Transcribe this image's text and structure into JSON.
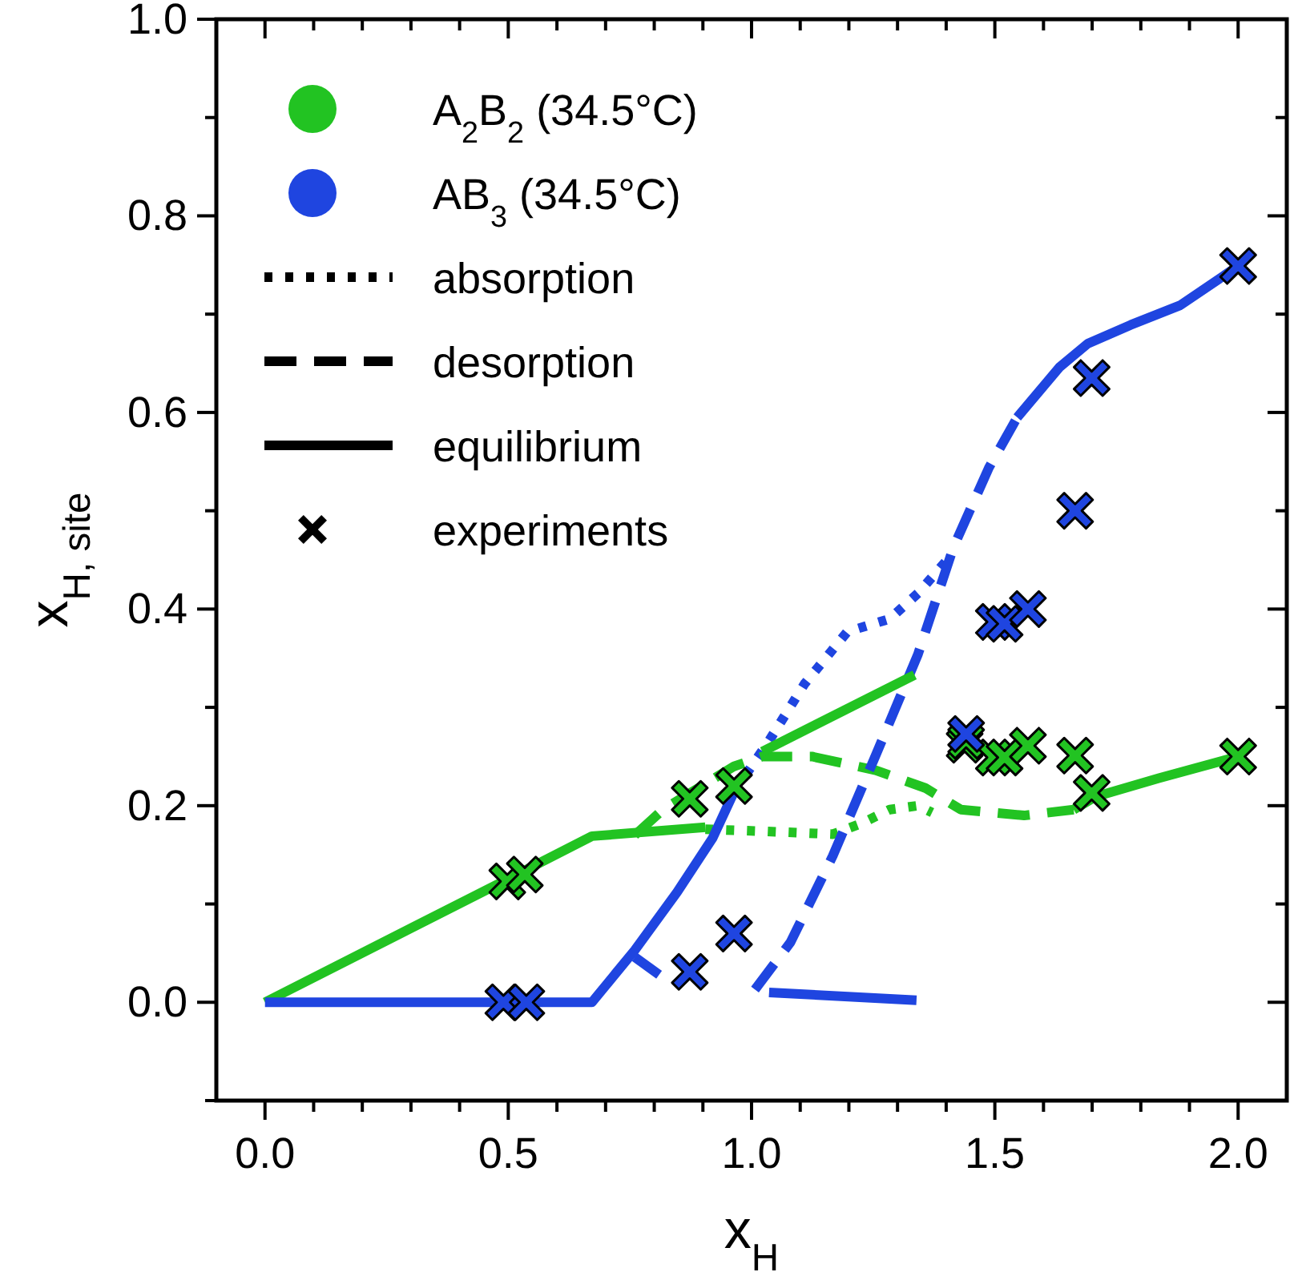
{
  "chart_data": {
    "type": "line",
    "xlabel": "x$_{H}$",
    "ylabel": "x$_{H, site}$",
    "xlim": [
      -0.1,
      2.1
    ],
    "ylim": [
      -0.1,
      1.0
    ],
    "xticks": [
      {
        "value": 0,
        "label": "0.0"
      },
      {
        "value": 0.1,
        "label": null
      },
      {
        "value": 0.2,
        "label": null
      },
      {
        "value": 0.3,
        "label": null
      },
      {
        "value": 0.4,
        "label": null
      },
      {
        "value": 0.5,
        "label": "0.5"
      },
      {
        "value": 0.6,
        "label": null
      },
      {
        "value": 0.7,
        "label": null
      },
      {
        "value": 0.8,
        "label": null
      },
      {
        "value": 0.9,
        "label": null
      },
      {
        "value": 1,
        "label": "1.0"
      },
      {
        "value": 1.1,
        "label": null
      },
      {
        "value": 1.2,
        "label": null
      },
      {
        "value": 1.3,
        "label": null
      },
      {
        "value": 1.4,
        "label": null
      },
      {
        "value": 1.5,
        "label": "1.5"
      },
      {
        "value": 1.6,
        "label": null
      },
      {
        "value": 1.7,
        "label": null
      },
      {
        "value": 1.8,
        "label": null
      },
      {
        "value": 1.9,
        "label": null
      },
      {
        "value": 2,
        "label": "2.0"
      }
    ],
    "yticks": [
      {
        "value": -0.1,
        "label": null
      },
      {
        "value": 0,
        "label": "0.0"
      },
      {
        "value": 0.1,
        "label": null
      },
      {
        "value": 0.2,
        "label": "0.2"
      },
      {
        "value": 0.3,
        "label": null
      },
      {
        "value": 0.4,
        "label": "0.4"
      },
      {
        "value": 0.5,
        "label": null
      },
      {
        "value": 0.6,
        "label": "0.6"
      },
      {
        "value": 0.7,
        "label": null
      },
      {
        "value": 0.8,
        "label": "0.8"
      },
      {
        "value": 0.9,
        "label": null
      },
      {
        "value": 1,
        "label": "1.0"
      }
    ],
    "grid": false,
    "legend": "top left",
    "annotations": [
      "absorption",
      "desorption",
      "equilibrium",
      "experiments"
    ],
    "series": [
      {
        "name": "A$_{2}$B$_{2}$ (34.5°C)",
        "line_style": "dotted",
        "color": "#22c322",
        "x": [
          0.905,
          1.022,
          1.167,
          1.226,
          1.284,
          1.342,
          1.371
        ],
        "values": [
          0.176,
          0.174,
          0.171,
          0.182,
          0.196,
          0.2,
          0.193
        ]
      },
      {
        "name": "AB$_{3}$ (34.5°C)",
        "line_style": "dotted",
        "color": "#1f45e0",
        "x": [
          0.964,
          1.036,
          1.109,
          1.197,
          1.284,
          1.342,
          1.4
        ],
        "values": [
          0.214,
          0.266,
          0.324,
          0.377,
          0.39,
          0.416,
          0.449
        ]
      },
      {
        "line_style": "dashed",
        "color": "#22c322",
        "x": [
          0.76,
          0.818,
          0.964,
          1.022,
          1.124,
          1.255,
          1.357,
          1.43,
          1.56,
          1.662
        ],
        "values": [
          0.17,
          0.196,
          0.24,
          0.25,
          0.25,
          0.236,
          0.218,
          0.196,
          0.19,
          0.196
        ]
      },
      {
        "line_style": "dashed",
        "color": "#1f45e0",
        "x": [
          1.007,
          1.08,
          1.167,
          1.255,
          1.342,
          1.415,
          1.488,
          1.546
        ],
        "values": [
          0.013,
          0.061,
          0.149,
          0.251,
          0.354,
          0.463,
          0.544,
          0.595
        ]
      },
      {
        "line_style": "solid",
        "color": "#22c322",
        "x": [
          0,
          0.498,
          0.672,
          0.905
        ],
        "values": [
          0,
          0.125,
          0.169,
          0.178
        ]
      },
      {
        "line_style": "solid",
        "color": "#22c322",
        "x": [
          1.022,
          1.335
        ],
        "values": [
          0.255,
          0.333
        ]
      },
      {
        "line_style": "solid",
        "color": "#22c322",
        "x": [
          1.662,
          1.706,
          1.837,
          2.0
        ],
        "values": [
          0.196,
          0.209,
          0.228,
          0.25
        ]
      },
      {
        "line_style": "solid",
        "color": "#1f45e0",
        "x": [
          0,
          0.672,
          0.76,
          0.847,
          0.92,
          0.964
        ],
        "values": [
          0,
          0,
          0.053,
          0.112,
          0.167,
          0.214
        ]
      },
      {
        "line_style": "solid",
        "color": "#1f45e0",
        "x": [
          0.76,
          0.81
        ],
        "values": [
          0.046,
          0.028
        ]
      },
      {
        "line_style": "solid",
        "color": "#1f45e0",
        "x": [
          1.036,
          1.339
        ],
        "values": [
          0.01,
          0.002
        ]
      },
      {
        "line_style": "solid",
        "color": "#1f45e0",
        "x": [
          1.546,
          1.633,
          1.691,
          1.779,
          1.881,
          2.0
        ],
        "values": [
          0.595,
          0.646,
          0.67,
          0.689,
          0.709,
          0.749
        ]
      },
      {
        "type": "scatter",
        "marker": "cross",
        "color": "#22c322",
        "x": [
          0.498,
          0.534,
          0.873,
          0.964,
          1.438,
          1.441,
          1.498,
          1.52,
          1.568,
          1.665,
          1.699,
          2.0
        ],
        "values": [
          0.123,
          0.13,
          0.207,
          0.22,
          0.262,
          0.266,
          0.249,
          0.249,
          0.261,
          0.251,
          0.213,
          0.25
        ]
      },
      {
        "type": "scatter",
        "marker": "cross",
        "color": "#1f45e0",
        "x": [
          0.49,
          0.537,
          0.873,
          0.964,
          1.441,
          1.498,
          1.52,
          1.568,
          1.665,
          1.699,
          2.0
        ],
        "values": [
          0,
          0,
          0.031,
          0.07,
          0.273,
          0.387,
          0.385,
          0.4,
          0.5,
          0.635,
          0.749
        ]
      }
    ]
  }
}
